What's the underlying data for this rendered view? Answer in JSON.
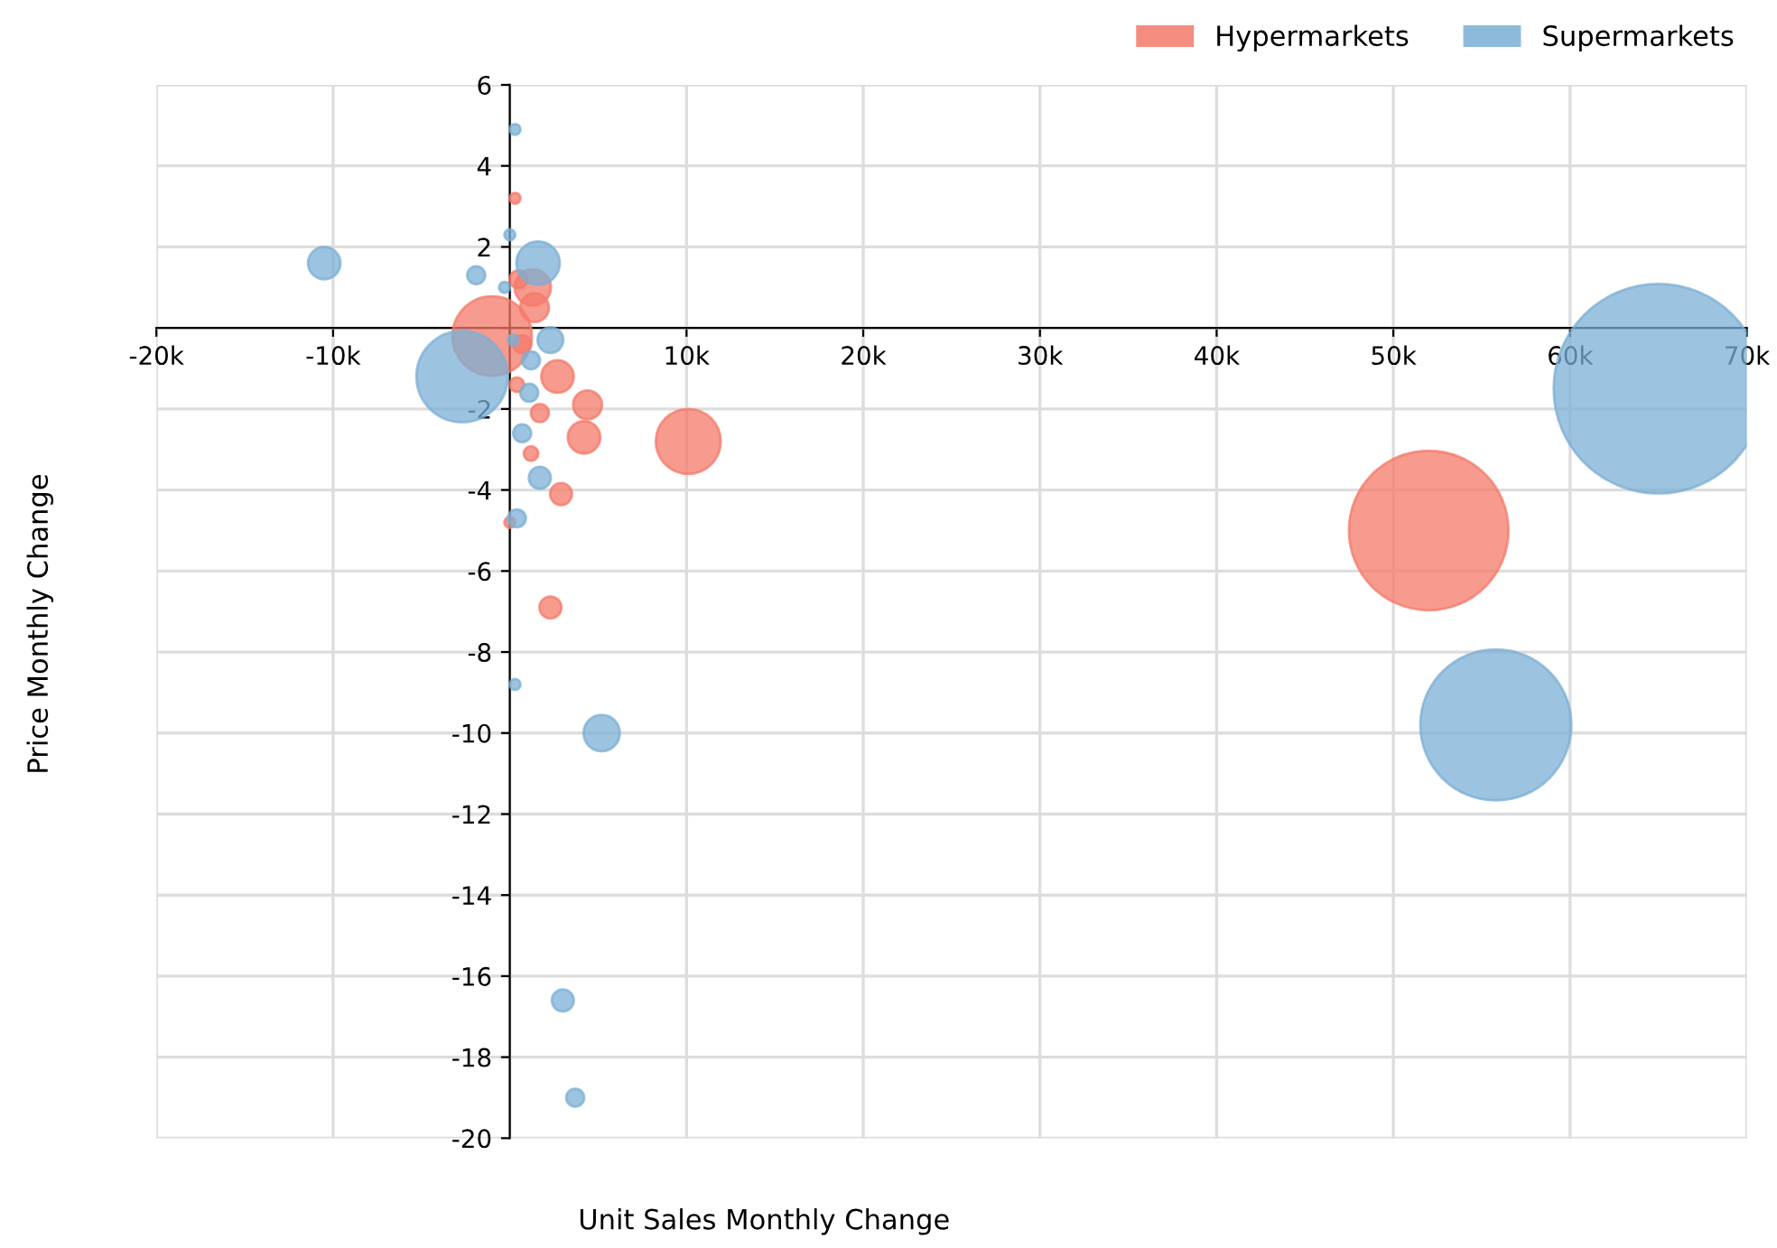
{
  "chart_data": {
    "type": "bubble",
    "xlabel": "Unit Sales Monthly Change",
    "ylabel": "Price Monthly Change",
    "xlim": [
      -20000,
      70000
    ],
    "ylim": [
      -20,
      6
    ],
    "xticks": [
      {
        "value": -20000,
        "label": "-20k"
      },
      {
        "value": -10000,
        "label": "-10k"
      },
      {
        "value": 0,
        "label": null
      },
      {
        "value": 10000,
        "label": "10k"
      },
      {
        "value": 20000,
        "label": "20k"
      },
      {
        "value": 30000,
        "label": "30k"
      },
      {
        "value": 40000,
        "label": "40k"
      },
      {
        "value": 50000,
        "label": "50k"
      },
      {
        "value": 60000,
        "label": "60k"
      },
      {
        "value": 70000,
        "label": "70k"
      }
    ],
    "yticks": [
      -20,
      -18,
      -16,
      -14,
      -12,
      -10,
      -8,
      -6,
      -4,
      -2,
      {
        "value": 0,
        "label": null
      },
      2,
      4,
      6
    ],
    "grid": true,
    "legend": "top right",
    "series": [
      {
        "name": "Hypermarkets",
        "color": "#f4796a",
        "x": [
          52000,
          10100,
          -1000,
          1300,
          1400,
          500,
          300,
          2700,
          4400,
          4200,
          1700,
          1200,
          2900,
          2300,
          0,
          700,
          400
        ],
        "values": [
          -5,
          -2.8,
          -0.2,
          1.0,
          0.5,
          1.2,
          3.2,
          -1.2,
          -1.9,
          -2.7,
          -2.1,
          -3.1,
          -4.1,
          -6.9,
          -4.8,
          -0.4,
          -1.4
        ],
        "sizes": [
          0.58,
          0.096,
          0.144,
          0.03,
          0.019,
          0.0074,
          0.0027,
          0.024,
          0.019,
          0.024,
          0.0074,
          0.0048,
          0.011,
          0.011,
          0.0027,
          0.0074,
          0.0048
        ]
      },
      {
        "name": "Supermarkets",
        "color": "#7bafd4",
        "x": [
          65000,
          55800,
          -10500,
          -2700,
          1600,
          300,
          0,
          -1900,
          2300,
          1200,
          1100,
          700,
          1700,
          400,
          300,
          5200,
          3000,
          3700,
          -300,
          200
        ],
        "values": [
          -1.5,
          -9.8,
          1.6,
          -1.2,
          1.6,
          4.9,
          2.3,
          1.3,
          -0.3,
          -0.8,
          -1.6,
          -2.6,
          -3.7,
          -4.7,
          -8.8,
          -10,
          -16.6,
          -19,
          1.0,
          -0.3
        ],
        "sizes": [
          1,
          0.52,
          0.024,
          0.19,
          0.043,
          0.0027,
          0.0027,
          0.0074,
          0.015,
          0.0074,
          0.0074,
          0.0074,
          0.011,
          0.0074,
          0.0027,
          0.03,
          0.011,
          0.0074,
          0.0027,
          0.0027
        ]
      }
    ]
  }
}
